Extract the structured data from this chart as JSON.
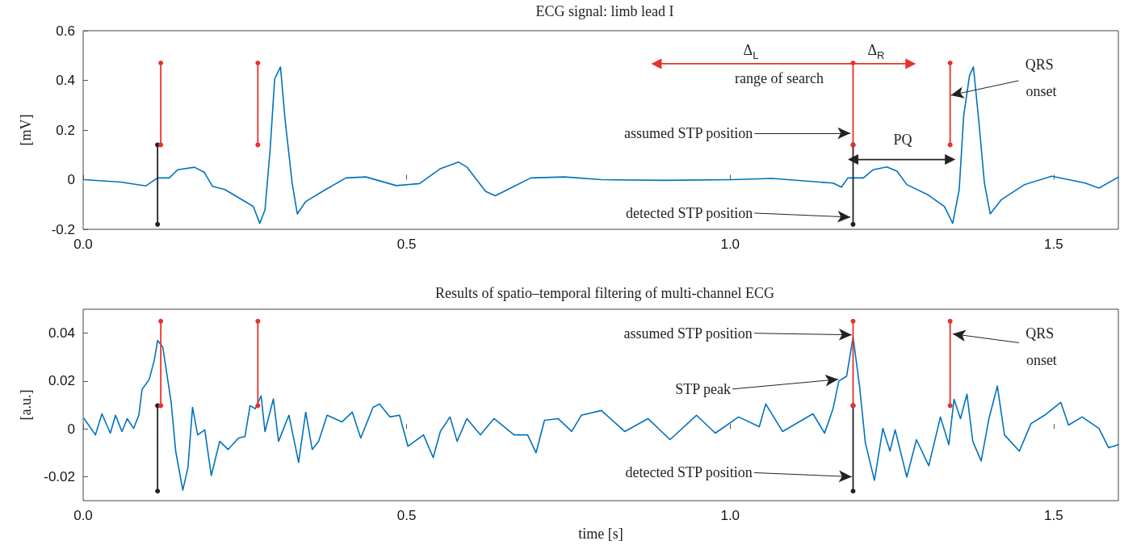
{
  "chart_data": [
    {
      "type": "line",
      "title": "ECG signal: limb lead I",
      "ylabel": "[mV]",
      "xlim": [
        0,
        1.6
      ],
      "xticks": [
        {
          "value": 0,
          "label": "0.0"
        },
        {
          "value": 0.5,
          "label": "0.5"
        },
        {
          "value": 1,
          "label": "1.0"
        },
        {
          "value": 1.5,
          "label": "1.5"
        }
      ],
      "ylim": [
        -0.2,
        0.6
      ],
      "yticks": [
        -0.2,
        0,
        0.2,
        0.4,
        0.6
      ],
      "grid": false,
      "series": [
        {
          "color": "#0072bd",
          "marker": "none",
          "x": [
            0.0015,
            0.058,
            0.097,
            0.115,
            0.133,
            0.146,
            0.172,
            0.187,
            0.2,
            0.219,
            0.25,
            0.263,
            0.273,
            0.281,
            0.289,
            0.296,
            0.305,
            0.312,
            0.323,
            0.331,
            0.344,
            0.37,
            0.406,
            0.437,
            0.484,
            0.52,
            0.552,
            0.58,
            0.593,
            0.622,
            0.637,
            0.666,
            0.692,
            0.744,
            0.801,
            0.899,
            1.003,
            1.065,
            1.159,
            1.172,
            1.182,
            1.206,
            1.221,
            1.242,
            1.258,
            1.273,
            1.305,
            1.331,
            1.344,
            1.354,
            1.361,
            1.37,
            1.376,
            1.384,
            1.393,
            1.402,
            1.419,
            1.455,
            1.497,
            1.549,
            1.57,
            1.6
          ],
          "values": [
            0.0,
            -0.01,
            -0.025,
            0.007,
            0.007,
            0.04,
            0.05,
            0.03,
            -0.027,
            -0.04,
            -0.088,
            -0.108,
            -0.176,
            -0.122,
            0.122,
            0.406,
            0.454,
            0.244,
            -0.014,
            -0.138,
            -0.088,
            -0.047,
            0.007,
            0.011,
            -0.024,
            -0.016,
            0.044,
            0.071,
            0.051,
            -0.047,
            -0.065,
            -0.027,
            0.007,
            0.011,
            0.0,
            -0.003,
            0.0,
            0.005,
            -0.014,
            -0.03,
            0.007,
            0.007,
            0.04,
            0.051,
            0.034,
            -0.02,
            -0.06,
            -0.108,
            -0.176,
            -0.04,
            0.258,
            0.42,
            0.454,
            0.244,
            -0.014,
            -0.138,
            -0.081,
            -0.02,
            0.014,
            -0.014,
            -0.034,
            0.01
          ]
        },
        {
          "color": "#222222",
          "marker": "circle",
          "x": [
            0.115,
            0.115
          ],
          "values": [
            -0.18,
            0.14
          ]
        },
        {
          "color": "#e8312a",
          "marker": "circle",
          "x": [
            0.12,
            0.12
          ],
          "values": [
            0.14,
            0.47
          ]
        },
        {
          "color": "#e8312a",
          "marker": "circle",
          "x": [
            0.27,
            0.27
          ],
          "values": [
            0.14,
            0.47
          ]
        },
        {
          "color": "#222222",
          "marker": "circle",
          "x": [
            1.19,
            1.19
          ],
          "values": [
            -0.18,
            0.14
          ]
        },
        {
          "color": "#e8312a",
          "marker": "circle",
          "x": [
            1.19,
            1.19
          ],
          "values": [
            0.14,
            0.47
          ]
        },
        {
          "color": "#e8312a",
          "marker": "circle",
          "x": [
            1.34,
            1.34
          ],
          "values": [
            0.14,
            0.47
          ]
        },
        {
          "color": "#e8312a",
          "marker": "triangle",
          "x": [
            0.886,
            1.279
          ],
          "values": [
            0.467,
            0.467
          ]
        },
        {
          "color": "#222222",
          "marker": "triangle",
          "x": [
            1.19,
            1.34
          ],
          "values": [
            0.081,
            0.081
          ]
        }
      ],
      "annotations": [
        "Δ$_{L}$",
        "Δ$_{R}$",
        "range of search",
        "PQ",
        {
          "text": "assumed STP position",
          "x": 1.186,
          "y": 0.187
        },
        {
          "text": "detected STP position",
          "x": 1.186,
          "y": -0.151
        },
        {
          "text": "QRS onset",
          "x": 1.341,
          "y": 0.34
        }
      ]
    },
    {
      "type": "line",
      "title": "Results of spatio–temporal filtering of multi-channel ECG",
      "xlabel": "time [s]",
      "ylabel": "[a.u.]",
      "xlim": [
        0,
        1.6
      ],
      "xticks": [
        {
          "value": 0,
          "label": "0.0"
        },
        {
          "value": 0.5,
          "label": "0.5"
        },
        {
          "value": 1,
          "label": "1.0"
        },
        {
          "value": 1.5,
          "label": "1.5"
        }
      ],
      "ylim": [
        -0.03,
        0.05
      ],
      "yticks": [
        -0.02,
        0,
        0.02,
        0.04
      ],
      "grid": false,
      "series": [
        {
          "color": "#0072bd",
          "marker": "none",
          "x": [
            0.0015,
            0.019,
            0.029,
            0.042,
            0.05,
            0.06,
            0.068,
            0.078,
            0.086,
            0.091,
            0.102,
            0.11,
            0.115,
            0.123,
            0.128,
            0.136,
            0.143,
            0.154,
            0.162,
            0.169,
            0.177,
            0.188,
            0.198,
            0.211,
            0.224,
            0.24,
            0.25,
            0.258,
            0.266,
            0.275,
            0.281,
            0.294,
            0.302,
            0.318,
            0.333,
            0.344,
            0.354,
            0.364,
            0.377,
            0.4,
            0.416,
            0.429,
            0.448,
            0.458,
            0.474,
            0.489,
            0.502,
            0.526,
            0.541,
            0.552,
            0.567,
            0.578,
            0.593,
            0.614,
            0.635,
            0.666,
            0.687,
            0.7,
            0.713,
            0.734,
            0.755,
            0.77,
            0.801,
            0.837,
            0.873,
            0.907,
            0.948,
            0.977,
            1.013,
            1.045,
            1.055,
            1.081,
            1.128,
            1.146,
            1.159,
            1.168,
            1.18,
            1.19,
            1.2,
            1.209,
            1.223,
            1.236,
            1.247,
            1.255,
            1.273,
            1.288,
            1.307,
            1.325,
            1.338,
            1.346,
            1.356,
            1.366,
            1.375,
            1.388,
            1.4,
            1.413,
            1.424,
            1.447,
            1.465,
            1.486,
            1.511,
            1.523,
            1.544,
            1.57,
            1.585,
            1.6
          ],
          "values": [
            0.0043,
            -0.0025,
            0.0063,
            -0.0018,
            0.0057,
            -0.0011,
            0.0043,
            0.0002,
            0.0057,
            0.0165,
            0.0206,
            0.0288,
            0.0369,
            0.0342,
            0.0253,
            0.0111,
            -0.0093,
            -0.0256,
            -0.0161,
            0.009,
            -0.0025,
            -0.0004,
            -0.0195,
            -0.0052,
            -0.0086,
            -0.0038,
            -0.0032,
            0.0097,
            0.0084,
            0.0138,
            -0.0011,
            0.0125,
            -0.0052,
            0.0057,
            -0.014,
            0.007,
            -0.0086,
            -0.0052,
            0.0057,
            0.0029,
            0.007,
            -0.0038,
            0.009,
            0.0104,
            0.005,
            0.0057,
            -0.0073,
            -0.0025,
            -0.012,
            -0.0011,
            0.005,
            -0.0052,
            0.0043,
            -0.0025,
            0.0043,
            -0.0025,
            -0.0025,
            -0.01,
            0.0036,
            0.0043,
            -0.0011,
            0.0057,
            0.0077,
            -0.0011,
            0.0043,
            -0.0045,
            0.0057,
            -0.0018,
            0.005,
            0.0009,
            0.0104,
            -0.0011,
            0.0063,
            -0.0018,
            0.0084,
            0.02,
            0.022,
            0.0383,
            0.0179,
            -0.0059,
            -0.0215,
            0.0002,
            -0.0093,
            -0.0004,
            -0.0201,
            -0.0045,
            -0.0154,
            0.005,
            -0.0066,
            0.0124,
            0.0043,
            0.0145,
            -0.0052,
            -0.0134,
            0.0043,
            0.0179,
            -0.0025,
            -0.0093,
            0.0022,
            0.0057,
            0.0111,
            0.0016,
            0.005,
            0.0002,
            -0.0079,
            -0.0066
          ]
        },
        {
          "color": "#222222",
          "marker": "circle",
          "x": [
            0.115,
            0.115
          ],
          "values": [
            -0.026,
            0.0097
          ]
        },
        {
          "color": "#e8312a",
          "marker": "circle",
          "x": [
            0.12,
            0.12
          ],
          "values": [
            0.0097,
            0.045
          ]
        },
        {
          "color": "#e8312a",
          "marker": "circle",
          "x": [
            0.27,
            0.27
          ],
          "values": [
            0.0097,
            0.045
          ]
        },
        {
          "color": "#222222",
          "marker": "circle",
          "x": [
            1.19,
            1.19
          ],
          "values": [
            -0.026,
            0.0097
          ]
        },
        {
          "color": "#e8312a",
          "marker": "circle",
          "x": [
            1.19,
            1.19
          ],
          "values": [
            0.0097,
            0.045
          ]
        },
        {
          "color": "#e8312a",
          "marker": "circle",
          "x": [
            1.34,
            1.34
          ],
          "values": [
            0.0097,
            0.045
          ]
        }
      ],
      "annotations": [
        {
          "text": "assumed STP position",
          "x": 1.188,
          "y": 0.0393
        },
        {
          "text": "STP peak",
          "x": 1.167,
          "y": 0.0207
        },
        {
          "text": "detected STP position",
          "x": 1.188,
          "y": -0.02
        },
        {
          "text": "QRS onset",
          "x": 1.344,
          "y": 0.0397
        }
      ]
    }
  ]
}
